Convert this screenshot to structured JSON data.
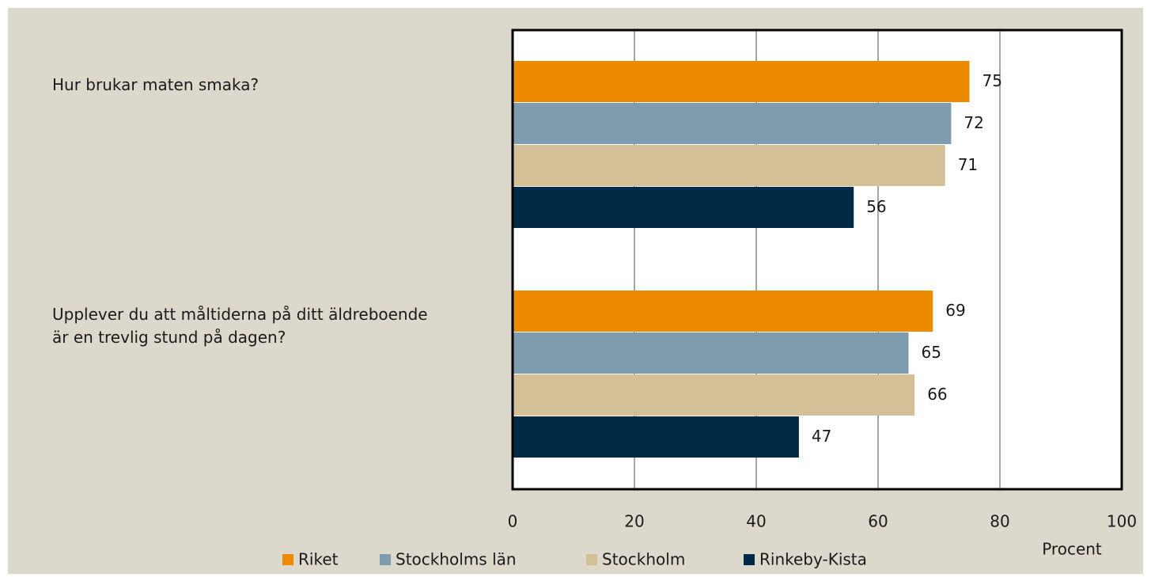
{
  "chart_data": {
    "type": "bar",
    "orientation": "horizontal",
    "categories": [
      "Hur brukar maten smaka?",
      "Upplever du att måltiderna på ditt äldreboende är en trevlig stund på dagen?"
    ],
    "series": [
      {
        "name": "Riket",
        "color": "#ee8a00",
        "values": [
          75,
          69
        ]
      },
      {
        "name": "Stockholms län",
        "color": "#7f9cae",
        "values": [
          72,
          65
        ]
      },
      {
        "name": "Stockholm",
        "color": "#d4c096",
        "values": [
          71,
          66
        ]
      },
      {
        "name": "Rinkeby-Kista",
        "color": "#002a45",
        "values": [
          56,
          47
        ]
      }
    ],
    "xlabel": "Procent",
    "xlim": [
      0,
      100
    ],
    "xticks": [
      0,
      20,
      40,
      60,
      80,
      100
    ],
    "grid": true,
    "legend": "bottom"
  }
}
